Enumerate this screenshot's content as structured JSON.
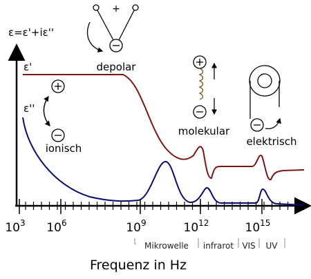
{
  "formula": "ε=ε'+iε''",
  "eps_real": "ε'",
  "eps_imag": "ε''",
  "mechanisms": {
    "dipole_plus": "+",
    "depolar": "depolar",
    "ionisch": "ionisch",
    "molekular": "molekular",
    "elektrisch": "elektrisch"
  },
  "x_ticks": [
    {
      "base": "10",
      "exponent": "3"
    },
    {
      "base": "10",
      "exponent": "6"
    },
    {
      "base": "10",
      "exponent": "9"
    },
    {
      "base": "10",
      "exponent": "12"
    },
    {
      "base": "10",
      "exponent": "15"
    }
  ],
  "bands": [
    "Mikrowelle",
    "infrarot",
    "VIS",
    "UV"
  ],
  "x_axis_label": "Frequenz in Hz"
}
